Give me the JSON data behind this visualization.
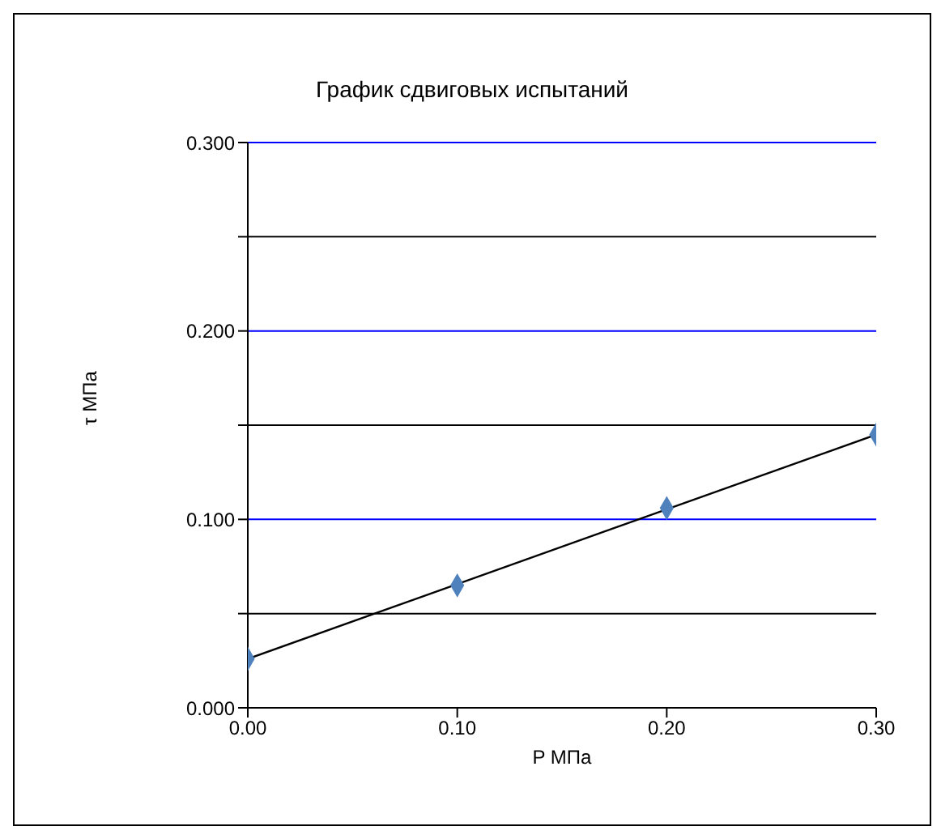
{
  "chart_data": {
    "type": "scatter",
    "title": "График сдвиговых испытаний",
    "xlabel": "P МПа",
    "ylabel": "τ МПа",
    "x": [
      0,
      0.1,
      0.2,
      0.3
    ],
    "series": [
      {
        "color": "#4f81bd",
        "marker": "diamond",
        "values": [
          0.026,
          0.065,
          0.106,
          0.145
        ]
      },
      {
        "type": "line",
        "color": "#000000",
        "marker": "none",
        "x": [
          0,
          0.3
        ],
        "values": [
          0.026,
          0.145
        ]
      }
    ],
    "xlim": [
      0,
      0.3
    ],
    "xticks": [
      {
        "value": 0,
        "label": "0.00"
      },
      {
        "value": 0.1,
        "label": "0.10"
      },
      {
        "value": 0.2,
        "label": "0.20"
      },
      {
        "value": 0.3,
        "label": "0.30"
      }
    ],
    "ylim": [
      0,
      0.3
    ],
    "yticks": [
      {
        "value": 0,
        "label": "0.000"
      },
      {
        "value": 0.05,
        "label": null
      },
      {
        "value": 0.1,
        "label": "0.100"
      },
      {
        "value": 0.15,
        "label": null
      },
      {
        "value": 0.2,
        "label": "0.200"
      },
      {
        "value": 0.25,
        "label": null
      },
      {
        "value": 0.3,
        "label": "0.300"
      }
    ],
    "grid": "y",
    "legend": false
  }
}
